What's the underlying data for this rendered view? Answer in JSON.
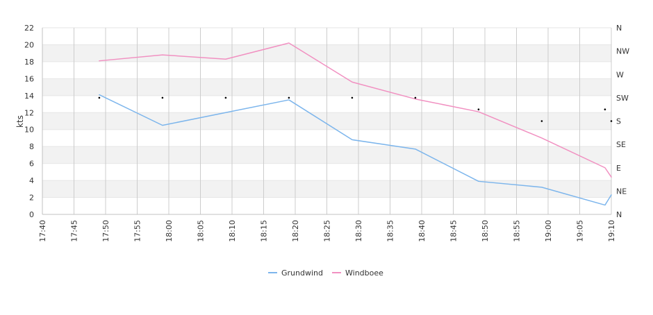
{
  "chart_data": {
    "type": "line",
    "title": "",
    "xlabel": "",
    "ylabel": "kts",
    "ylim": [
      0,
      22
    ],
    "y_ticks": [
      0,
      2,
      4,
      6,
      8,
      10,
      12,
      14,
      16,
      18,
      20,
      22
    ],
    "x_ticks": [
      "17:40",
      "17:45",
      "17:50",
      "17:55",
      "18:00",
      "18:05",
      "18:10",
      "18:15",
      "18:20",
      "18:25",
      "18:30",
      "18:35",
      "18:40",
      "18:45",
      "18:50",
      "18:55",
      "19:00",
      "19:05",
      "19:10"
    ],
    "x_range": [
      "17:40",
      "19:10"
    ],
    "y2_labels": [
      "N",
      "NE",
      "E",
      "SE",
      "S",
      "SW",
      "W",
      "NW",
      "N"
    ],
    "grid": "horizontal alternating bands and vertical lines",
    "legend_position": "bottom",
    "series": [
      {
        "name": "Grundwind",
        "color": "#7cb5ec",
        "points": [
          {
            "x": "17:49",
            "y": 14.1
          },
          {
            "x": "17:59",
            "y": 10.5
          },
          {
            "x": "18:09",
            "y": 12.0
          },
          {
            "x": "18:19",
            "y": 13.5
          },
          {
            "x": "18:29",
            "y": 8.8
          },
          {
            "x": "18:39",
            "y": 7.7
          },
          {
            "x": "18:49",
            "y": 3.9
          },
          {
            "x": "18:59",
            "y": 3.2
          },
          {
            "x": "19:09",
            "y": 1.1
          },
          {
            "x": "19:10",
            "y": 2.3
          }
        ]
      },
      {
        "name": "Windboee",
        "color": "#f190c1",
        "points": [
          {
            "x": "17:49",
            "y": 18.1
          },
          {
            "x": "17:59",
            "y": 18.8
          },
          {
            "x": "18:09",
            "y": 18.3
          },
          {
            "x": "18:19",
            "y": 20.2
          },
          {
            "x": "18:29",
            "y": 15.6
          },
          {
            "x": "18:39",
            "y": 13.6
          },
          {
            "x": "18:49",
            "y": 12.1
          },
          {
            "x": "18:59",
            "y": 9.0
          },
          {
            "x": "19:09",
            "y": 5.5
          },
          {
            "x": "19:10",
            "y": 4.4
          }
        ]
      }
    ],
    "direction_markers": {
      "color": "#000000",
      "points": [
        {
          "x": "17:49",
          "direction": "SW"
        },
        {
          "x": "17:59",
          "direction": "SW"
        },
        {
          "x": "18:09",
          "direction": "SW"
        },
        {
          "x": "18:19",
          "direction": "SW"
        },
        {
          "x": "18:29",
          "direction": "SW"
        },
        {
          "x": "18:39",
          "direction": "SW"
        },
        {
          "x": "18:49",
          "direction": "SSW"
        },
        {
          "x": "18:59",
          "direction": "S"
        },
        {
          "x": "19:09",
          "direction": "SSW"
        },
        {
          "x": "19:10",
          "direction": "S"
        }
      ]
    }
  }
}
